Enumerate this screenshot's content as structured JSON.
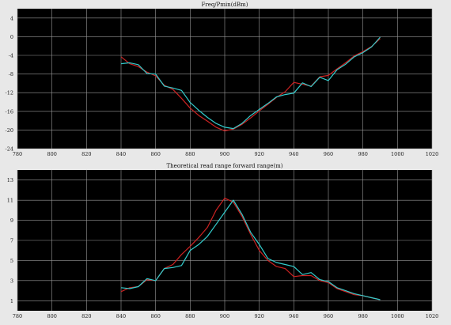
{
  "chart_data": [
    {
      "type": "line",
      "title": "Freq/Pmin(dBm)",
      "xlabel": "",
      "ylabel": "",
      "xlim": [
        780,
        1020
      ],
      "ylim": [
        -24,
        6
      ],
      "xticks": [
        780,
        800,
        820,
        840,
        860,
        880,
        900,
        920,
        940,
        960,
        980,
        1000,
        1020
      ],
      "yticks": [
        -24,
        -20,
        -16,
        -12,
        -8,
        -4,
        0,
        4
      ],
      "grid": true,
      "colors": {
        "background": "#000000",
        "grid": "#9a9a9a"
      },
      "series": [
        {
          "color": "#cc2222",
          "x": [
            840,
            845,
            850,
            855,
            860,
            865,
            870,
            875,
            880,
            885,
            890,
            895,
            900,
            905,
            910,
            915,
            920,
            925,
            930,
            935,
            940,
            945,
            950,
            955,
            960,
            965,
            970,
            975,
            980,
            985,
            990
          ],
          "y": [
            -4.3,
            -5.8,
            -6.4,
            -7.6,
            -8.4,
            -10.4,
            -11.3,
            -13.2,
            -15.3,
            -16.9,
            -18.1,
            -19.4,
            -20.2,
            -19.8,
            -18.8,
            -17.4,
            -15.9,
            -14.5,
            -13.0,
            -11.8,
            -9.8,
            -10.2,
            -10.6,
            -8.6,
            -8.3,
            -6.9,
            -5.6,
            -4.1,
            -3.2,
            -2.1,
            -0.4
          ]
        },
        {
          "color": "#33cccc",
          "x": [
            840,
            845,
            850,
            855,
            860,
            865,
            870,
            875,
            880,
            885,
            890,
            895,
            900,
            905,
            910,
            915,
            920,
            925,
            930,
            935,
            940,
            945,
            950,
            955,
            960,
            965,
            970,
            975,
            980,
            985,
            990
          ],
          "y": [
            -5.8,
            -5.6,
            -6.0,
            -7.9,
            -8.0,
            -10.6,
            -11.0,
            -11.5,
            -14.1,
            -15.8,
            -17.3,
            -18.6,
            -19.4,
            -19.7,
            -18.6,
            -16.9,
            -15.6,
            -14.3,
            -12.9,
            -12.4,
            -12.1,
            -9.9,
            -10.7,
            -8.7,
            -9.4,
            -7.1,
            -5.9,
            -4.3,
            -3.4,
            -2.2,
            -0.1
          ]
        }
      ]
    },
    {
      "type": "line",
      "title": "Theoretical read range forward range(m)",
      "xlabel": "",
      "ylabel": "",
      "xlim": [
        780,
        1020
      ],
      "ylim": [
        0,
        14
      ],
      "xticks": [
        780,
        800,
        820,
        840,
        860,
        880,
        900,
        920,
        940,
        960,
        980,
        1000,
        1020
      ],
      "yticks": [
        1,
        3,
        5,
        7,
        9,
        11,
        13
      ],
      "grid": true,
      "colors": {
        "background": "#000000",
        "grid": "#9a9a9a"
      },
      "series": [
        {
          "color": "#cc2222",
          "x": [
            840,
            845,
            850,
            855,
            860,
            865,
            870,
            875,
            880,
            885,
            890,
            895,
            900,
            905,
            910,
            915,
            920,
            925,
            930,
            935,
            940,
            945,
            950,
            955,
            960,
            965,
            970,
            975,
            980,
            985,
            990
          ],
          "y": [
            1.9,
            2.3,
            2.4,
            3.1,
            3.0,
            4.2,
            4.6,
            5.6,
            6.4,
            7.3,
            8.3,
            10.0,
            11.2,
            10.8,
            9.4,
            7.6,
            6.0,
            5.0,
            4.4,
            4.2,
            3.4,
            3.5,
            3.5,
            3.0,
            2.8,
            2.2,
            1.9,
            1.6,
            1.5,
            1.3,
            1.1
          ]
        },
        {
          "color": "#33cccc",
          "x": [
            840,
            845,
            850,
            855,
            860,
            865,
            870,
            875,
            880,
            885,
            890,
            895,
            900,
            905,
            910,
            915,
            920,
            925,
            930,
            935,
            940,
            945,
            950,
            955,
            960,
            965,
            970,
            975,
            980,
            985,
            990
          ],
          "y": [
            2.3,
            2.2,
            2.4,
            3.2,
            3.0,
            4.2,
            4.3,
            4.5,
            6.0,
            6.6,
            7.4,
            8.6,
            9.8,
            11.0,
            9.6,
            7.8,
            6.6,
            5.2,
            4.8,
            4.6,
            4.4,
            3.6,
            3.8,
            3.1,
            2.9,
            2.3,
            2.0,
            1.7,
            1.5,
            1.3,
            1.1
          ]
        }
      ]
    }
  ]
}
